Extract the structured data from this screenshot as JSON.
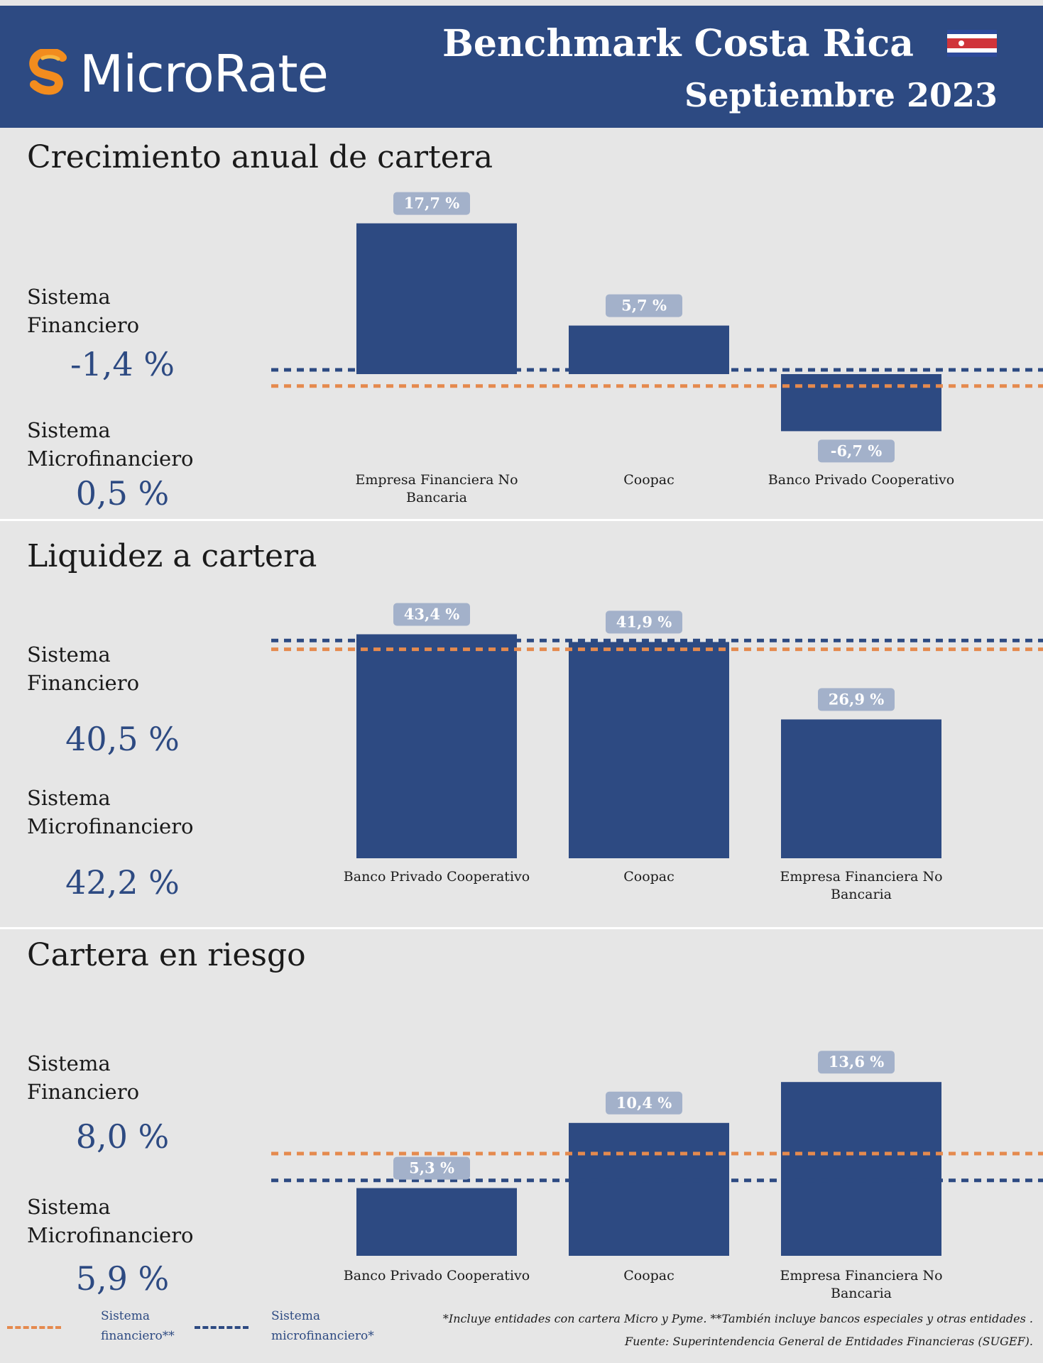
{
  "header": {
    "logo_text": "MicroRate",
    "title": "Benchmark Costa Rica",
    "subtitle": "Septiembre 2023",
    "flag_icon": "costa-rica-flag-icon"
  },
  "colors": {
    "header_bg": "#2d4a82",
    "bar": "#2d4a82",
    "label_box": "#a3b1ca",
    "financiero_line": "#e58a4e",
    "microfinanciero_line": "#2d4a82",
    "logo_orange": "#f28c1e"
  },
  "sections": [
    {
      "title": "Crecimiento anual de cartera",
      "sistema_financiero_label": "Sistema\nFinanciero",
      "sistema_financiero_value": "-1,4 %",
      "sistema_micro_label": "Sistema\nMicrofinanciero",
      "sistema_micro_value": "0,5 %"
    },
    {
      "title": "Liquidez a cartera",
      "sistema_financiero_label": "Sistema\nFinanciero",
      "sistema_financiero_value": "40,5 %",
      "sistema_micro_label": "Sistema\nMicrofinanciero",
      "sistema_micro_value": "42,2 %"
    },
    {
      "title": "Cartera en riesgo",
      "sistema_financiero_label": "Sistema\nFinanciero",
      "sistema_financiero_value": "8,0 %",
      "sistema_micro_label": "Sistema\nMicrofinanciero",
      "sistema_micro_value": "5,9 %"
    }
  ],
  "chart_data": [
    {
      "type": "bar",
      "title": "Crecimiento anual de cartera",
      "categories": [
        "Empresa Financiera No Bancaria",
        "Coopac",
        "Banco Privado Cooperativo"
      ],
      "values": [
        17.7,
        5.7,
        -6.7
      ],
      "value_labels": [
        "17,7 %",
        "5,7 %",
        "-6,7 %"
      ],
      "reference_lines": [
        {
          "name": "Sistema financiero**",
          "value": -1.4,
          "color": "#e58a4e"
        },
        {
          "name": "Sistema microfinanciero*",
          "value": 0.5,
          "color": "#2d4a82"
        }
      ]
    },
    {
      "type": "bar",
      "title": "Liquidez a cartera",
      "categories": [
        "Banco Privado Cooperativo",
        "Coopac",
        "Empresa Financiera No Bancaria"
      ],
      "values": [
        43.4,
        41.9,
        26.9
      ],
      "value_labels": [
        "43,4 %",
        "41,9 %",
        "26,9 %"
      ],
      "reference_lines": [
        {
          "name": "Sistema financiero**",
          "value": 40.5,
          "color": "#e58a4e"
        },
        {
          "name": "Sistema microfinanciero*",
          "value": 42.2,
          "color": "#2d4a82"
        }
      ]
    },
    {
      "type": "bar",
      "title": "Cartera en riesgo",
      "categories": [
        "Banco Privado Cooperativo",
        "Coopac",
        "Empresa Financiera No Bancaria"
      ],
      "values": [
        5.3,
        10.4,
        13.6
      ],
      "value_labels": [
        "5,3 %",
        "10,4 %",
        "13,6 %"
      ],
      "reference_lines": [
        {
          "name": "Sistema financiero**",
          "value": 8.0,
          "color": "#e58a4e"
        },
        {
          "name": "Sistema microfinanciero*",
          "value": 5.9,
          "color": "#2d4a82"
        }
      ]
    }
  ],
  "legend": {
    "financiero_label": "Sistema financiero**",
    "micro_label": "Sistema microfinanciero*"
  },
  "footnotes": {
    "note": "*Incluye entidades con cartera Micro y Pyme. **También incluye bancos especiales y otras entidades .",
    "source": "Fuente: Superintendencia General de Entidades Financieras (SUGEF)."
  }
}
